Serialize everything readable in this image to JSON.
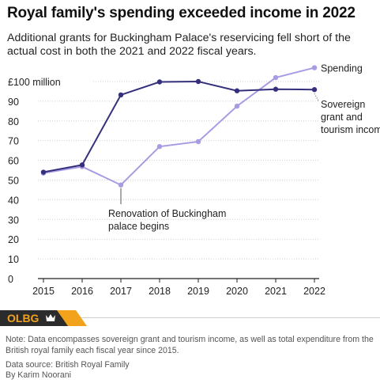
{
  "header": {
    "title": "Royal family's spending exceeded income in 2022",
    "subtitle": "Additional grants for Buckingham Palace's reservicing fell short of the actual cost in both the 2021 and 2022 fiscal years."
  },
  "chart_data": {
    "type": "line",
    "title": "Royal family's spending exceeded income in 2022",
    "x": [
      2015,
      2016,
      2017,
      2018,
      2019,
      2020,
      2021,
      2022
    ],
    "series": [
      {
        "name": "Spending",
        "color": "#a99be3",
        "values": [
          53.5,
          56.8,
          47.5,
          67.0,
          69.5,
          87.5,
          102.0,
          107.0
        ]
      },
      {
        "name": "Sovereign grant and tourism income",
        "color": "#35307c",
        "values": [
          54.0,
          57.7,
          93.2,
          99.8,
          100.0,
          95.3,
          96.1,
          95.9
        ]
      }
    ],
    "ylim": [
      0,
      100
    ],
    "yticks": [
      0,
      10,
      20,
      30,
      40,
      50,
      60,
      70,
      80,
      90,
      100
    ],
    "ytick_labels": [
      "0",
      "10",
      "20",
      "30",
      "40",
      "50",
      "60",
      "70",
      "80",
      "90",
      "£100 million"
    ],
    "xtick_labels": [
      "2015",
      "2016",
      "2017",
      "2018",
      "2019",
      "2020",
      "2021",
      "2022"
    ],
    "grid": true,
    "annotation": {
      "x": 2017,
      "text_lines": [
        "Renovation of Buckingham",
        "palace begins"
      ]
    }
  },
  "brand": {
    "logo_text": "OLBG",
    "accent_color": "#f2a21b"
  },
  "footer": {
    "note": "Note: Data encompasses sovereign grant and tourism income, as well as total expenditure from the British royal family each fiscal year since 2015.",
    "source": "Data source: British Royal Family",
    "author": "By Karim Noorani"
  }
}
